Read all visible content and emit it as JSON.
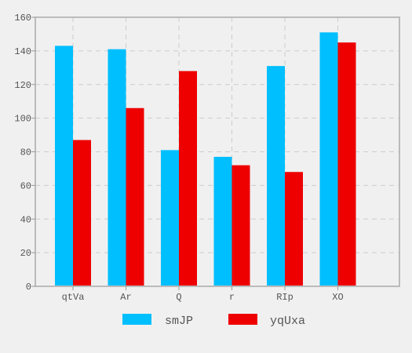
{
  "chart_data": {
    "type": "bar",
    "categories": [
      "qtVa",
      "Ar",
      "Q",
      "r",
      "RIp",
      "XO"
    ],
    "series": [
      {
        "name": "smJP",
        "values": [
          143,
          141,
          81,
          77,
          131,
          151
        ],
        "color": "#00bfff"
      },
      {
        "name": "yqUxa",
        "values": [
          87,
          106,
          128,
          72,
          68,
          145
        ],
        "color": "#ee0000"
      }
    ],
    "ylim": [
      0,
      160
    ],
    "yticks": [
      0,
      20,
      40,
      60,
      80,
      100,
      120,
      140,
      160
    ],
    "grid": true,
    "legend_position": "bottom-center",
    "colors": {
      "background": "#f0f0f0",
      "plot_border": "#bbbbbb",
      "grid": "#cccccc",
      "text": "#555555"
    }
  }
}
